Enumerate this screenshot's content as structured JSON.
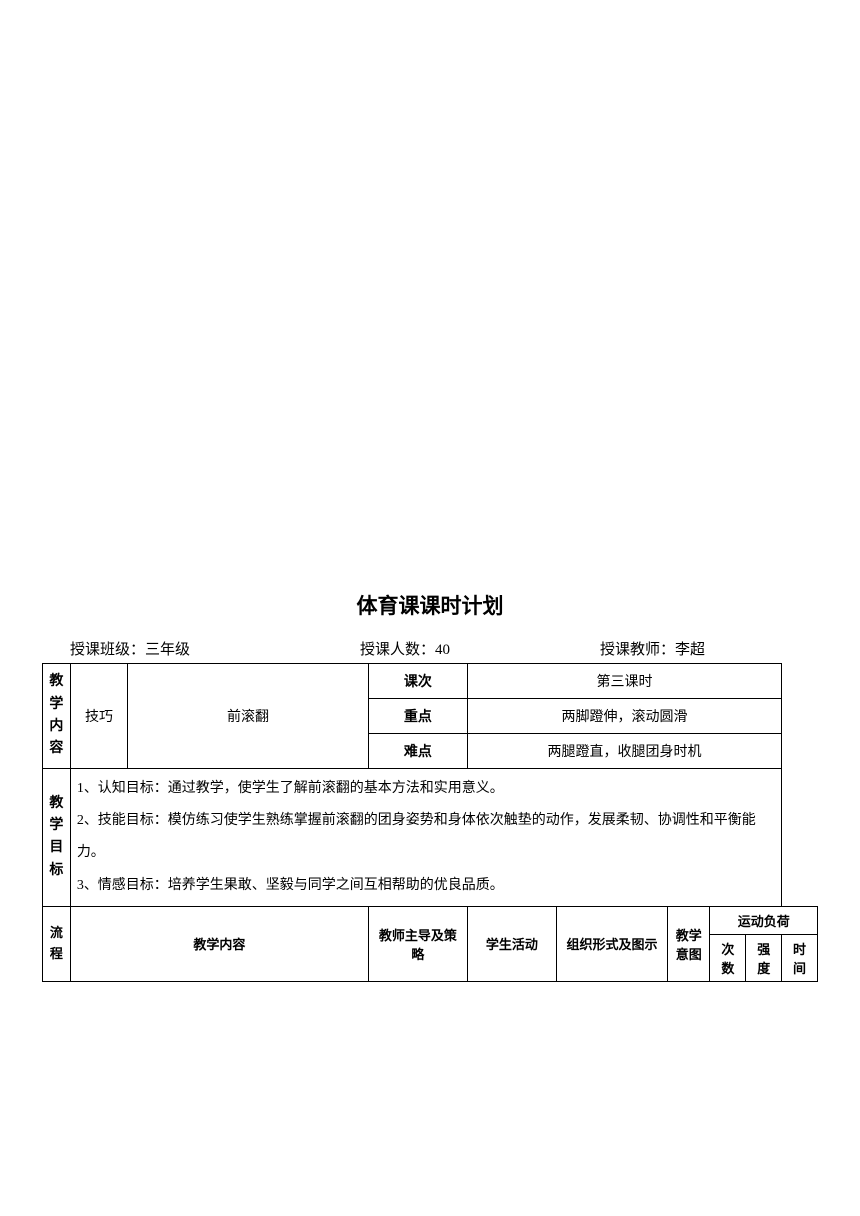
{
  "title": "体育课课时计划",
  "header": {
    "class_label": "授课班级：",
    "class_value": "三年级",
    "count_label": "授课人数：",
    "count_value": "40",
    "teacher_label": "授课教师：",
    "teacher_value": "李超"
  },
  "content_section": {
    "label": "教学内容",
    "skill": "技巧",
    "name": "前滚翻",
    "lesson_label": "课次",
    "lesson_value": "第三课时",
    "keypoint_label": "重点",
    "keypoint_value": "两脚蹬伸，滚动圆滑",
    "difficulty_label": "难点",
    "difficulty_value": "两腿蹬直，收腿团身时机"
  },
  "goals": {
    "label": "教学目标",
    "line1": "1、认知目标：通过教学，使学生了解前滚翻的基本方法和实用意义。",
    "line2": "2、技能目标：模仿练习使学生熟练掌握前滚翻的团身姿势和身体依次触垫的动作，发展柔韧、协调性和平衡能力。",
    "line3": "3、情感目标：培养学生果敢、坚毅与同学之间互相帮助的优良品质。"
  },
  "flow": {
    "label": "流程",
    "content": "教学内容",
    "teacher": "教师主导及策略",
    "student": "学生活动",
    "org": "组织形式及图示",
    "intent": "教学意图",
    "sport_load": "运动负荷",
    "count": "次数",
    "intensity": "强度",
    "time": "时间"
  }
}
